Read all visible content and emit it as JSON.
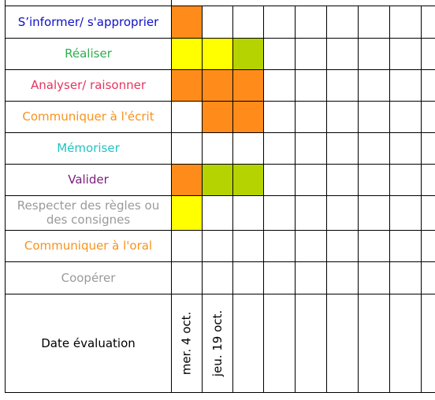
{
  "colors": {
    "orange": "#ff8c1a",
    "yellow": "#ffff00",
    "green": "#b5d300"
  },
  "rows": [
    {
      "label": "S’informer/ s'approprier",
      "color": "#1010c8",
      "cells": [
        "orange",
        "",
        "",
        "",
        "",
        "",
        "",
        "",
        ""
      ]
    },
    {
      "label": "Réaliser",
      "color": "#2fae4e",
      "cells": [
        "yellow",
        "yellow",
        "green",
        "",
        "",
        "",
        "",
        "",
        ""
      ]
    },
    {
      "label": "Analyser/ raisonner",
      "color": "#e8335d",
      "cells": [
        "orange",
        "orange",
        "orange",
        "",
        "",
        "",
        "",
        "",
        ""
      ]
    },
    {
      "label": "Communiquer à l'écrit",
      "color": "#f7931e",
      "cells": [
        "",
        "orange",
        "orange",
        "",
        "",
        "",
        "",
        "",
        ""
      ]
    },
    {
      "label": "Mémoriser",
      "color": "#22c3c3",
      "cells": [
        "",
        "",
        "",
        "",
        "",
        "",
        "",
        "",
        ""
      ]
    },
    {
      "label": "Valider",
      "color": "#7b1d7b",
      "cells": [
        "orange",
        "green",
        "green",
        "",
        "",
        "",
        "",
        "",
        ""
      ]
    },
    {
      "label": "Respecter des règles ou des consignes",
      "color": "#9a9a9a",
      "cells": [
        "yellow",
        "",
        "",
        "",
        "",
        "",
        "",
        "",
        ""
      ]
    },
    {
      "label": "Communiquer à l'oral",
      "color": "#f7931e",
      "cells": [
        "",
        "",
        "",
        "",
        "",
        "",
        "",
        "",
        ""
      ]
    },
    {
      "label": "Coopérer",
      "color": "#9a9a9a",
      "cells": [
        "",
        "",
        "",
        "",
        "",
        "",
        "",
        "",
        ""
      ]
    }
  ],
  "footer": {
    "label": "Date évaluation",
    "label_color": "#000000",
    "dates": [
      "mer. 4 oct.",
      "jeu. 19 oct."
    ]
  }
}
